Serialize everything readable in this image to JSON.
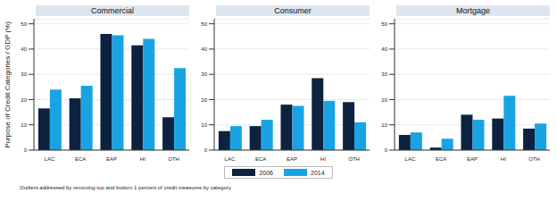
{
  "chart_data": [
    {
      "type": "bar",
      "title": "Commercial",
      "y_label": "Purpose of Credit Categories / GDP (%)",
      "annotation": "Outliers addressed by removing top and bottom 1 percent of credit measures by category",
      "legend": "bottom",
      "grid": true,
      "categories": [
        "LAC",
        "ECA",
        "EAP",
        "HI",
        "OTH"
      ],
      "series": [
        {
          "name": "2006",
          "color": "#0d2240",
          "values": [
            16.5,
            20.5,
            46,
            41.5,
            13
          ]
        },
        {
          "name": "2014",
          "color": "#1aa3e3",
          "values": [
            24,
            25.5,
            45.5,
            44,
            32.5
          ]
        }
      ],
      "ylim": [
        0,
        52
      ],
      "yticks": [
        0,
        10,
        20,
        30,
        40,
        50
      ]
    },
    {
      "type": "bar",
      "title": "Consumer",
      "grid": true,
      "categories": [
        "LAC",
        "ECA",
        "EAP",
        "HI",
        "OTH"
      ],
      "series": [
        {
          "name": "2006",
          "color": "#0d2240",
          "values": [
            7.5,
            9.5,
            18,
            28.5,
            19
          ]
        },
        {
          "name": "2014",
          "color": "#1aa3e3",
          "values": [
            9.5,
            12,
            17.5,
            19.5,
            11
          ]
        }
      ],
      "ylim": [
        0,
        52
      ],
      "yticks": [
        0,
        10,
        20,
        30,
        40,
        50
      ]
    },
    {
      "type": "bar",
      "title": "Mortgage",
      "grid": true,
      "categories": [
        "LAC",
        "ECA",
        "EAP",
        "HI",
        "OTH"
      ],
      "series": [
        {
          "name": "2006",
          "color": "#0d2240",
          "values": [
            6,
            1,
            14,
            12.5,
            8.5
          ]
        },
        {
          "name": "2014",
          "color": "#1aa3e3",
          "values": [
            7,
            4.5,
            12,
            21.5,
            10.5
          ]
        }
      ],
      "ylim": [
        0,
        52
      ],
      "yticks": [
        0,
        10,
        20,
        30,
        40,
        50
      ]
    }
  ]
}
